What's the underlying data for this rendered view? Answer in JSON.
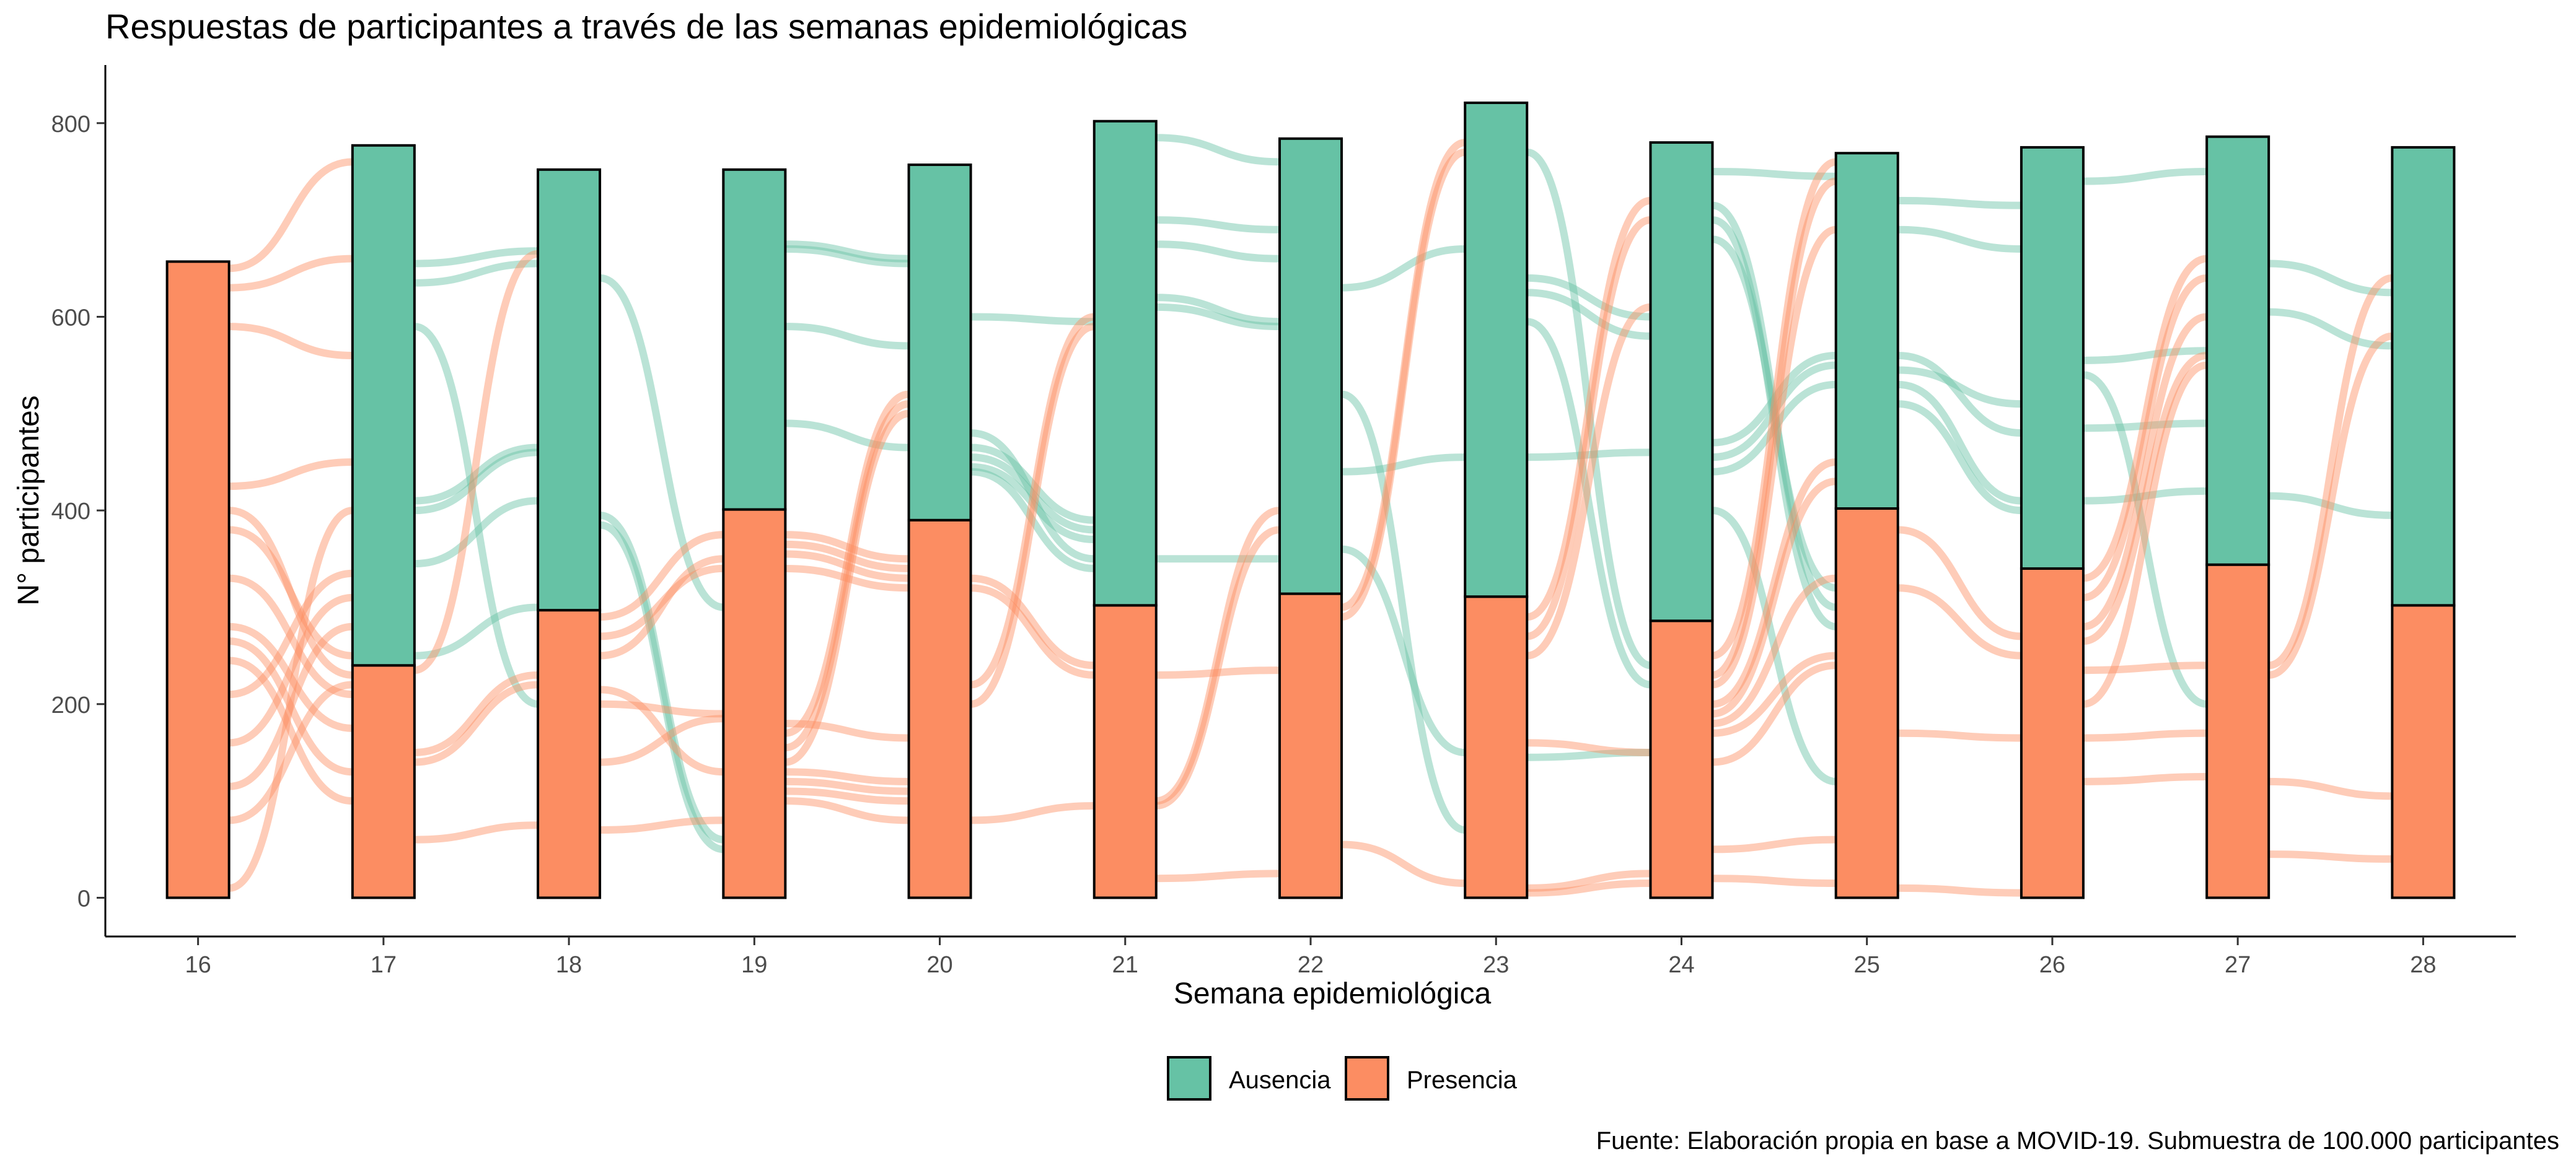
{
  "chart_data": {
    "type": "alluvial",
    "title": "Respuestas de participantes a través de las semanas epidemiológicas",
    "xlabel": "Semana epidemiológica",
    "ylabel": "N° participantes",
    "caption": "Fuente: Elaboración propia en base a MOVID-19. Submuestra de 100.000 participantes",
    "categories": [
      "16",
      "17",
      "18",
      "19",
      "20",
      "21",
      "22",
      "23",
      "24",
      "25",
      "26",
      "27",
      "28"
    ],
    "yticks": [
      0,
      200,
      400,
      600,
      800
    ],
    "ylim": [
      -40,
      860
    ],
    "grid": false,
    "legend_position": "bottom",
    "series": [
      {
        "name": "Presencia",
        "color": "#FC8D62",
        "values": [
          657,
          240,
          297,
          401,
          390,
          302,
          314,
          311,
          286,
          402,
          340,
          344,
          302
        ]
      },
      {
        "name": "Ausencia",
        "color": "#66C2A5",
        "values": [
          0,
          537,
          455,
          351,
          367,
          500,
          470,
          510,
          494,
          367,
          435,
          442,
          473
        ]
      }
    ],
    "flows": [
      {
        "from": 0,
        "color": "#FC8D62",
        "y0": 650,
        "y1": 760
      },
      {
        "from": 0,
        "color": "#FC8D62",
        "y0": 630,
        "y1": 660
      },
      {
        "from": 0,
        "color": "#FC8D62",
        "y0": 590,
        "y1": 560
      },
      {
        "from": 0,
        "color": "#FC8D62",
        "y0": 425,
        "y1": 450
      },
      {
        "from": 0,
        "color": "#FC8D62",
        "y0": 400,
        "y1": 230
      },
      {
        "from": 0,
        "color": "#FC8D62",
        "y0": 380,
        "y1": 250
      },
      {
        "from": 0,
        "color": "#FC8D62",
        "y0": 330,
        "y1": 210
      },
      {
        "from": 0,
        "color": "#FC8D62",
        "y0": 280,
        "y1": 175
      },
      {
        "from": 0,
        "color": "#FC8D62",
        "y0": 265,
        "y1": 130
      },
      {
        "from": 0,
        "color": "#FC8D62",
        "y0": 245,
        "y1": 100
      },
      {
        "from": 0,
        "color": "#FC8D62",
        "y0": 210,
        "y1": 335
      },
      {
        "from": 0,
        "color": "#FC8D62",
        "y0": 160,
        "y1": 310
      },
      {
        "from": 0,
        "color": "#FC8D62",
        "y0": 115,
        "y1": 280
      },
      {
        "from": 0,
        "color": "#FC8D62",
        "y0": 80,
        "y1": 220
      },
      {
        "from": 0,
        "color": "#FC8D62",
        "y0": 10,
        "y1": 400
      },
      {
        "from": 1,
        "color": "#66C2A5",
        "y0": 655,
        "y1": 668
      },
      {
        "from": 1,
        "color": "#66C2A5",
        "y0": 635,
        "y1": 655
      },
      {
        "from": 1,
        "color": "#66C2A5",
        "y0": 590,
        "y1": 200
      },
      {
        "from": 1,
        "color": "#66C2A5",
        "y0": 410,
        "y1": 465
      },
      {
        "from": 1,
        "color": "#66C2A5",
        "y0": 400,
        "y1": 460
      },
      {
        "from": 1,
        "color": "#66C2A5",
        "y0": 345,
        "y1": 410
      },
      {
        "from": 1,
        "color": "#66C2A5",
        "y0": 250,
        "y1": 300
      },
      {
        "from": 1,
        "color": "#FC8D62",
        "y0": 235,
        "y1": 665
      },
      {
        "from": 1,
        "color": "#FC8D62",
        "y0": 150,
        "y1": 230
      },
      {
        "from": 1,
        "color": "#FC8D62",
        "y0": 140,
        "y1": 220
      },
      {
        "from": 1,
        "color": "#FC8D62",
        "y0": 60,
        "y1": 75
      },
      {
        "from": 2,
        "color": "#66C2A5",
        "y0": 640,
        "y1": 300
      },
      {
        "from": 2,
        "color": "#66C2A5",
        "y0": 395,
        "y1": 60
      },
      {
        "from": 2,
        "color": "#66C2A5",
        "y0": 385,
        "y1": 50
      },
      {
        "from": 2,
        "color": "#FC8D62",
        "y0": 290,
        "y1": 375
      },
      {
        "from": 2,
        "color": "#FC8D62",
        "y0": 270,
        "y1": 340
      },
      {
        "from": 2,
        "color": "#FC8D62",
        "y0": 250,
        "y1": 350
      },
      {
        "from": 2,
        "color": "#FC8D62",
        "y0": 215,
        "y1": 130
      },
      {
        "from": 2,
        "color": "#FC8D62",
        "y0": 200,
        "y1": 190
      },
      {
        "from": 2,
        "color": "#FC8D62",
        "y0": 140,
        "y1": 185
      },
      {
        "from": 2,
        "color": "#FC8D62",
        "y0": 70,
        "y1": 80
      },
      {
        "from": 3,
        "color": "#66C2A5",
        "y0": 675,
        "y1": 660
      },
      {
        "from": 3,
        "color": "#66C2A5",
        "y0": 670,
        "y1": 655
      },
      {
        "from": 3,
        "color": "#66C2A5",
        "y0": 590,
        "y1": 570
      },
      {
        "from": 3,
        "color": "#66C2A5",
        "y0": 490,
        "y1": 465
      },
      {
        "from": 3,
        "color": "#FC8D62",
        "y0": 375,
        "y1": 350
      },
      {
        "from": 3,
        "color": "#FC8D62",
        "y0": 365,
        "y1": 340
      },
      {
        "from": 3,
        "color": "#FC8D62",
        "y0": 355,
        "y1": 330
      },
      {
        "from": 3,
        "color": "#FC8D62",
        "y0": 340,
        "y1": 320
      },
      {
        "from": 3,
        "color": "#FC8D62",
        "y0": 180,
        "y1": 165
      },
      {
        "from": 3,
        "color": "#FC8D62",
        "y0": 170,
        "y1": 520
      },
      {
        "from": 3,
        "color": "#FC8D62",
        "y0": 155,
        "y1": 510
      },
      {
        "from": 3,
        "color": "#FC8D62",
        "y0": 140,
        "y1": 500
      },
      {
        "from": 3,
        "color": "#FC8D62",
        "y0": 130,
        "y1": 120
      },
      {
        "from": 3,
        "color": "#FC8D62",
        "y0": 120,
        "y1": 110
      },
      {
        "from": 3,
        "color": "#FC8D62",
        "y0": 110,
        "y1": 100
      },
      {
        "from": 3,
        "color": "#FC8D62",
        "y0": 100,
        "y1": 80
      },
      {
        "from": 4,
        "color": "#66C2A5",
        "y0": 600,
        "y1": 595
      },
      {
        "from": 4,
        "color": "#66C2A5",
        "y0": 480,
        "y1": 350
      },
      {
        "from": 4,
        "color": "#66C2A5",
        "y0": 465,
        "y1": 390
      },
      {
        "from": 4,
        "color": "#66C2A5",
        "y0": 455,
        "y1": 380
      },
      {
        "from": 4,
        "color": "#66C2A5",
        "y0": 445,
        "y1": 370
      },
      {
        "from": 4,
        "color": "#66C2A5",
        "y0": 440,
        "y1": 340
      },
      {
        "from": 4,
        "color": "#FC8D62",
        "y0": 330,
        "y1": 240
      },
      {
        "from": 4,
        "color": "#FC8D62",
        "y0": 320,
        "y1": 230
      },
      {
        "from": 4,
        "color": "#FC8D62",
        "y0": 220,
        "y1": 600
      },
      {
        "from": 4,
        "color": "#FC8D62",
        "y0": 200,
        "y1": 590
      },
      {
        "from": 4,
        "color": "#FC8D62",
        "y0": 80,
        "y1": 95
      },
      {
        "from": 5,
        "color": "#66C2A5",
        "y0": 785,
        "y1": 760
      },
      {
        "from": 5,
        "color": "#66C2A5",
        "y0": 700,
        "y1": 690
      },
      {
        "from": 5,
        "color": "#66C2A5",
        "y0": 675,
        "y1": 660
      },
      {
        "from": 5,
        "color": "#66C2A5",
        "y0": 620,
        "y1": 595
      },
      {
        "from": 5,
        "color": "#66C2A5",
        "y0": 610,
        "y1": 590
      },
      {
        "from": 5,
        "color": "#66C2A5",
        "y0": 350,
        "y1": 350
      },
      {
        "from": 5,
        "color": "#FC8D62",
        "y0": 230,
        "y1": 235
      },
      {
        "from": 5,
        "color": "#FC8D62",
        "y0": 100,
        "y1": 400
      },
      {
        "from": 5,
        "color": "#FC8D62",
        "y0": 95,
        "y1": 380
      },
      {
        "from": 5,
        "color": "#FC8D62",
        "y0": 20,
        "y1": 25
      },
      {
        "from": 6,
        "color": "#66C2A5",
        "y0": 630,
        "y1": 670
      },
      {
        "from": 6,
        "color": "#66C2A5",
        "y0": 520,
        "y1": 70
      },
      {
        "from": 6,
        "color": "#66C2A5",
        "y0": 440,
        "y1": 455
      },
      {
        "from": 6,
        "color": "#66C2A5",
        "y0": 360,
        "y1": 150
      },
      {
        "from": 6,
        "color": "#FC8D62",
        "y0": 300,
        "y1": 780
      },
      {
        "from": 6,
        "color": "#FC8D62",
        "y0": 290,
        "y1": 770
      },
      {
        "from": 6,
        "color": "#FC8D62",
        "y0": 55,
        "y1": 15
      },
      {
        "from": 7,
        "color": "#66C2A5",
        "y0": 770,
        "y1": 240
      },
      {
        "from": 7,
        "color": "#66C2A5",
        "y0": 640,
        "y1": 600
      },
      {
        "from": 7,
        "color": "#66C2A5",
        "y0": 625,
        "y1": 580
      },
      {
        "from": 7,
        "color": "#66C2A5",
        "y0": 595,
        "y1": 220
      },
      {
        "from": 7,
        "color": "#66C2A5",
        "y0": 455,
        "y1": 460
      },
      {
        "from": 7,
        "color": "#66C2A5",
        "y0": 145,
        "y1": 150
      },
      {
        "from": 7,
        "color": "#FC8D62",
        "y0": 290,
        "y1": 720
      },
      {
        "from": 7,
        "color": "#FC8D62",
        "y0": 270,
        "y1": 700
      },
      {
        "from": 7,
        "color": "#FC8D62",
        "y0": 250,
        "y1": 610
      },
      {
        "from": 7,
        "color": "#FC8D62",
        "y0": 160,
        "y1": 150
      },
      {
        "from": 7,
        "color": "#FC8D62",
        "y0": 10,
        "y1": 25
      },
      {
        "from": 7,
        "color": "#FC8D62",
        "y0": 5,
        "y1": 15
      },
      {
        "from": 8,
        "color": "#66C2A5",
        "y0": 750,
        "y1": 745
      },
      {
        "from": 8,
        "color": "#66C2A5",
        "y0": 715,
        "y1": 300
      },
      {
        "from": 8,
        "color": "#66C2A5",
        "y0": 700,
        "y1": 280
      },
      {
        "from": 8,
        "color": "#66C2A5",
        "y0": 680,
        "y1": 320
      },
      {
        "from": 8,
        "color": "#66C2A5",
        "y0": 470,
        "y1": 560
      },
      {
        "from": 8,
        "color": "#66C2A5",
        "y0": 455,
        "y1": 550
      },
      {
        "from": 8,
        "color": "#66C2A5",
        "y0": 440,
        "y1": 530
      },
      {
        "from": 8,
        "color": "#66C2A5",
        "y0": 400,
        "y1": 120
      },
      {
        "from": 8,
        "color": "#FC8D62",
        "y0": 250,
        "y1": 760
      },
      {
        "from": 8,
        "color": "#FC8D62",
        "y0": 230,
        "y1": 740
      },
      {
        "from": 8,
        "color": "#FC8D62",
        "y0": 220,
        "y1": 690
      },
      {
        "from": 8,
        "color": "#FC8D62",
        "y0": 200,
        "y1": 450
      },
      {
        "from": 8,
        "color": "#FC8D62",
        "y0": 190,
        "y1": 430
      },
      {
        "from": 8,
        "color": "#FC8D62",
        "y0": 180,
        "y1": 330
      },
      {
        "from": 8,
        "color": "#FC8D62",
        "y0": 170,
        "y1": 250
      },
      {
        "from": 8,
        "color": "#FC8D62",
        "y0": 140,
        "y1": 240
      },
      {
        "from": 8,
        "color": "#FC8D62",
        "y0": 50,
        "y1": 60
      },
      {
        "from": 8,
        "color": "#FC8D62",
        "y0": 20,
        "y1": 15
      },
      {
        "from": 9,
        "color": "#66C2A5",
        "y0": 720,
        "y1": 715
      },
      {
        "from": 9,
        "color": "#66C2A5",
        "y0": 690,
        "y1": 670
      },
      {
        "from": 9,
        "color": "#66C2A5",
        "y0": 560,
        "y1": 480
      },
      {
        "from": 9,
        "color": "#66C2A5",
        "y0": 545,
        "y1": 510
      },
      {
        "from": 9,
        "color": "#66C2A5",
        "y0": 530,
        "y1": 410
      },
      {
        "from": 9,
        "color": "#66C2A5",
        "y0": 510,
        "y1": 400
      },
      {
        "from": 9,
        "color": "#FC8D62",
        "y0": 380,
        "y1": 270
      },
      {
        "from": 9,
        "color": "#FC8D62",
        "y0": 320,
        "y1": 250
      },
      {
        "from": 9,
        "color": "#FC8D62",
        "y0": 170,
        "y1": 165
      },
      {
        "from": 9,
        "color": "#FC8D62",
        "y0": 10,
        "y1": 5
      },
      {
        "from": 10,
        "color": "#66C2A5",
        "y0": 740,
        "y1": 750
      },
      {
        "from": 10,
        "color": "#66C2A5",
        "y0": 555,
        "y1": 565
      },
      {
        "from": 10,
        "color": "#66C2A5",
        "y0": 540,
        "y1": 200
      },
      {
        "from": 10,
        "color": "#66C2A5",
        "y0": 485,
        "y1": 490
      },
      {
        "from": 10,
        "color": "#66C2A5",
        "y0": 410,
        "y1": 420
      },
      {
        "from": 10,
        "color": "#FC8D62",
        "y0": 330,
        "y1": 660
      },
      {
        "from": 10,
        "color": "#FC8D62",
        "y0": 310,
        "y1": 640
      },
      {
        "from": 10,
        "color": "#FC8D62",
        "y0": 280,
        "y1": 600
      },
      {
        "from": 10,
        "color": "#FC8D62",
        "y0": 265,
        "y1": 560
      },
      {
        "from": 10,
        "color": "#FC8D62",
        "y0": 235,
        "y1": 240
      },
      {
        "from": 10,
        "color": "#FC8D62",
        "y0": 200,
        "y1": 550
      },
      {
        "from": 10,
        "color": "#FC8D62",
        "y0": 165,
        "y1": 170
      },
      {
        "from": 10,
        "color": "#FC8D62",
        "y0": 120,
        "y1": 125
      },
      {
        "from": 11,
        "color": "#66C2A5",
        "y0": 655,
        "y1": 625
      },
      {
        "from": 11,
        "color": "#66C2A5",
        "y0": 605,
        "y1": 570
      },
      {
        "from": 11,
        "color": "#66C2A5",
        "y0": 415,
        "y1": 395
      },
      {
        "from": 11,
        "color": "#FC8D62",
        "y0": 240,
        "y1": 640
      },
      {
        "from": 11,
        "color": "#FC8D62",
        "y0": 230,
        "y1": 580
      },
      {
        "from": 11,
        "color": "#FC8D62",
        "y0": 120,
        "y1": 105
      },
      {
        "from": 11,
        "color": "#FC8D62",
        "y0": 45,
        "y1": 40
      }
    ]
  }
}
